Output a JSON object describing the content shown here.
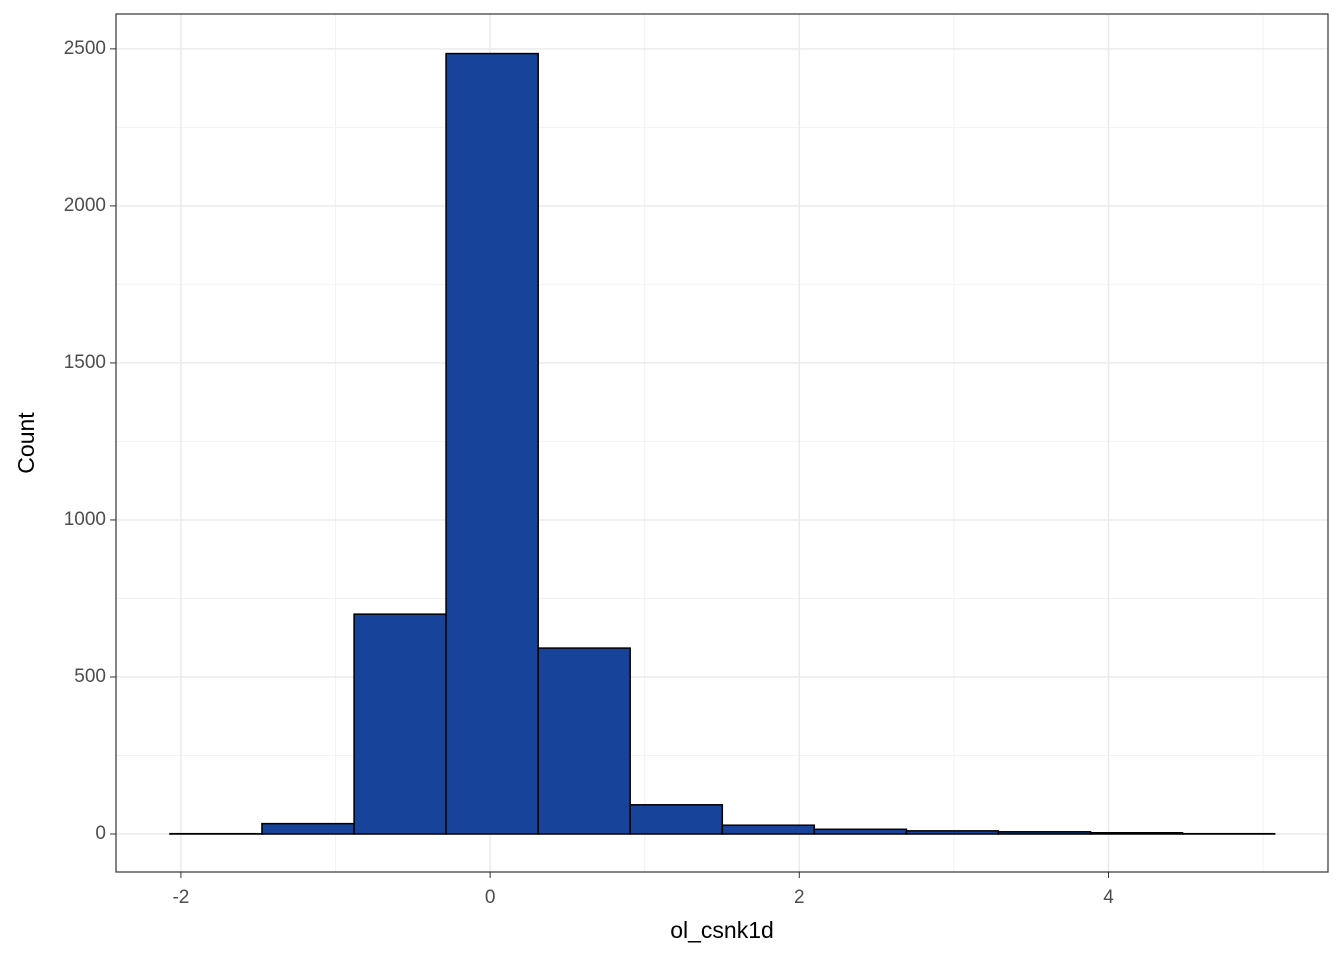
{
  "chart_data": {
    "type": "histogram",
    "xlabel": "ol_csnk1d",
    "ylabel": "Count",
    "bins": [
      -2.071,
      -1.476,
      -0.88,
      -0.285,
      0.311,
      0.906,
      1.502,
      2.097,
      2.693,
      3.288,
      3.884,
      4.479,
      5.075
    ],
    "counts": [
      1,
      33,
      700,
      2485,
      592,
      93,
      28,
      15,
      10,
      7,
      4,
      1
    ],
    "color": "#17449a",
    "edgecolor": "#000000",
    "xlim": [
      -2.42,
      5.42
    ],
    "ylim": [
      -121,
      2611
    ],
    "xticks": [
      -2,
      0,
      2,
      4
    ],
    "yticks": [
      0,
      500,
      1000,
      1500,
      2000,
      2500
    ],
    "minor_xticks": [
      -1,
      1,
      3,
      5
    ],
    "minor_yticks": [
      250,
      750,
      1250,
      1750,
      2250
    ],
    "grid": true
  }
}
